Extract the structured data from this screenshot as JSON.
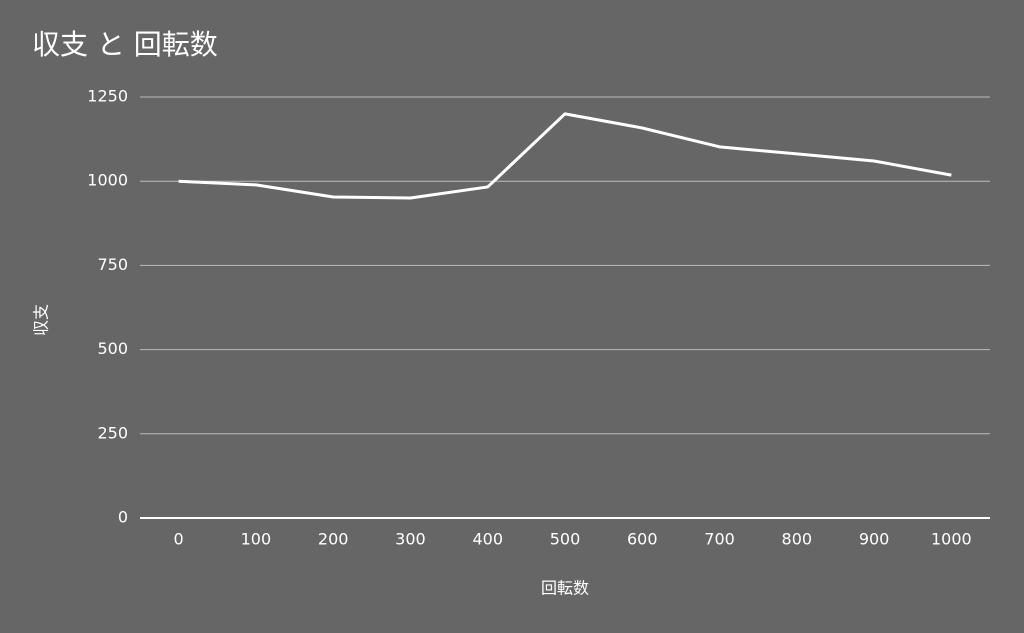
{
  "chart_data": {
    "type": "line",
    "title": "収支 と 回転数",
    "x_label": "回転数",
    "y_label": "収支",
    "categories": [
      "0",
      "100",
      "200",
      "300",
      "400",
      "500",
      "600",
      "700",
      "800",
      "900",
      "1000"
    ],
    "series": [
      {
        "name": "収支",
        "color": "#ffffff",
        "values": [
          1000,
          989,
          953,
          950,
          983,
          1200,
          1158,
          1102,
          1081,
          1060,
          1018
        ]
      }
    ],
    "ylim": [
      0,
      1250
    ],
    "yticks": [
      0,
      250,
      500,
      750,
      1000,
      1250
    ],
    "grid": true,
    "legend": false,
    "background": "#666666"
  }
}
